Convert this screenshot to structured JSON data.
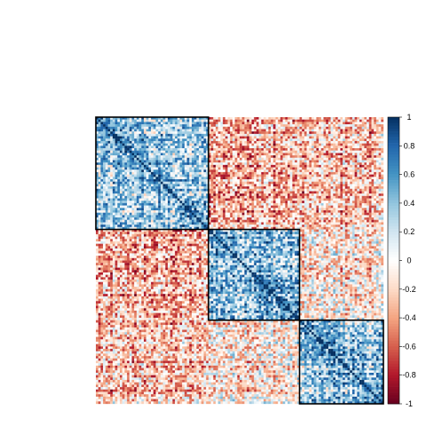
{
  "chart_data": {
    "type": "heatmap",
    "title": "",
    "xlabel": "",
    "ylabel": "",
    "value_range": [
      -1,
      1
    ],
    "legend_position": "right",
    "colorbar_ticks": [
      1,
      0.8,
      0.6,
      0.4,
      0.2,
      0,
      -0.2,
      -0.4,
      -0.6,
      -0.8,
      -1
    ],
    "colorbar_tick_labels": [
      "1",
      "0.8",
      "0.6",
      "0.4",
      "0.2",
      "0",
      "-0.2",
      "-0.4",
      "-0.6",
      "-0.8",
      "-1"
    ],
    "colormap": [
      "#67001f",
      "#b2182b",
      "#d6604d",
      "#f4a582",
      "#fddbc7",
      "#ffffff",
      "#d1e5f0",
      "#92c5de",
      "#4393c3",
      "#2166ac",
      "#053061"
    ],
    "matrix_order_fraction_boundaries": [
      0.39,
      0.71,
      1.0
    ],
    "clusters": [
      {
        "mean_within": 0.3,
        "mean_vs_cluster_2": -0.35,
        "mean_vs_cluster_3": -0.3
      },
      {
        "mean_within": 0.4,
        "mean_vs_cluster_1": -0.35,
        "mean_vs_cluster_3": -0.1
      },
      {
        "mean_within": 0.35,
        "mean_vs_cluster_1": -0.3,
        "mean_vs_cluster_2": -0.1
      }
    ],
    "diagonal_value": 1,
    "grid": false,
    "cluster_outlines": true
  }
}
